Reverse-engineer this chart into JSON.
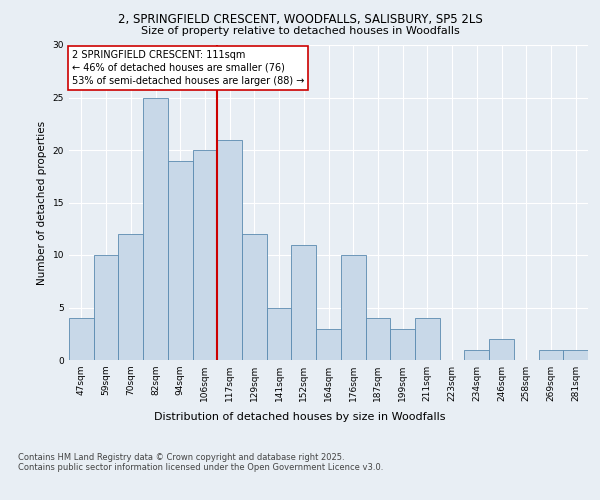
{
  "title_line1": "2, SPRINGFIELD CRESCENT, WOODFALLS, SALISBURY, SP5 2LS",
  "title_line2": "Size of property relative to detached houses in Woodfalls",
  "categories": [
    "47sqm",
    "59sqm",
    "70sqm",
    "82sqm",
    "94sqm",
    "106sqm",
    "117sqm",
    "129sqm",
    "141sqm",
    "152sqm",
    "164sqm",
    "176sqm",
    "187sqm",
    "199sqm",
    "211sqm",
    "223sqm",
    "234sqm",
    "246sqm",
    "258sqm",
    "269sqm",
    "281sqm"
  ],
  "values": [
    4,
    10,
    12,
    25,
    19,
    20,
    21,
    12,
    5,
    11,
    3,
    10,
    4,
    3,
    4,
    0,
    1,
    2,
    0,
    1,
    1
  ],
  "bar_color": "#c8d8e8",
  "bar_edge_color": "#5a8ab0",
  "vline_x_idx": 6,
  "vline_color": "#cc0000",
  "xlabel": "Distribution of detached houses by size in Woodfalls",
  "ylabel": "Number of detached properties",
  "ylim": [
    0,
    30
  ],
  "yticks": [
    0,
    5,
    10,
    15,
    20,
    25,
    30
  ],
  "annotation_title": "2 SPRINGFIELD CRESCENT: 111sqm",
  "annotation_line2": "← 46% of detached houses are smaller (76)",
  "annotation_line3": "53% of semi-detached houses are larger (88) →",
  "annotation_box_color": "#ffffff",
  "annotation_box_edge": "#cc0000",
  "footer_line1": "Contains HM Land Registry data © Crown copyright and database right 2025.",
  "footer_line2": "Contains public sector information licensed under the Open Government Licence v3.0.",
  "bg_color": "#e8eef4",
  "grid_color": "#ffffff",
  "fig_bg_color": "#e8eef4",
  "title1_fontsize": 8.5,
  "title2_fontsize": 8.0,
  "ylabel_fontsize": 7.5,
  "xlabel_fontsize": 8.0,
  "tick_fontsize": 6.5,
  "ann_fontsize": 7.0,
  "footer_fontsize": 6.0
}
